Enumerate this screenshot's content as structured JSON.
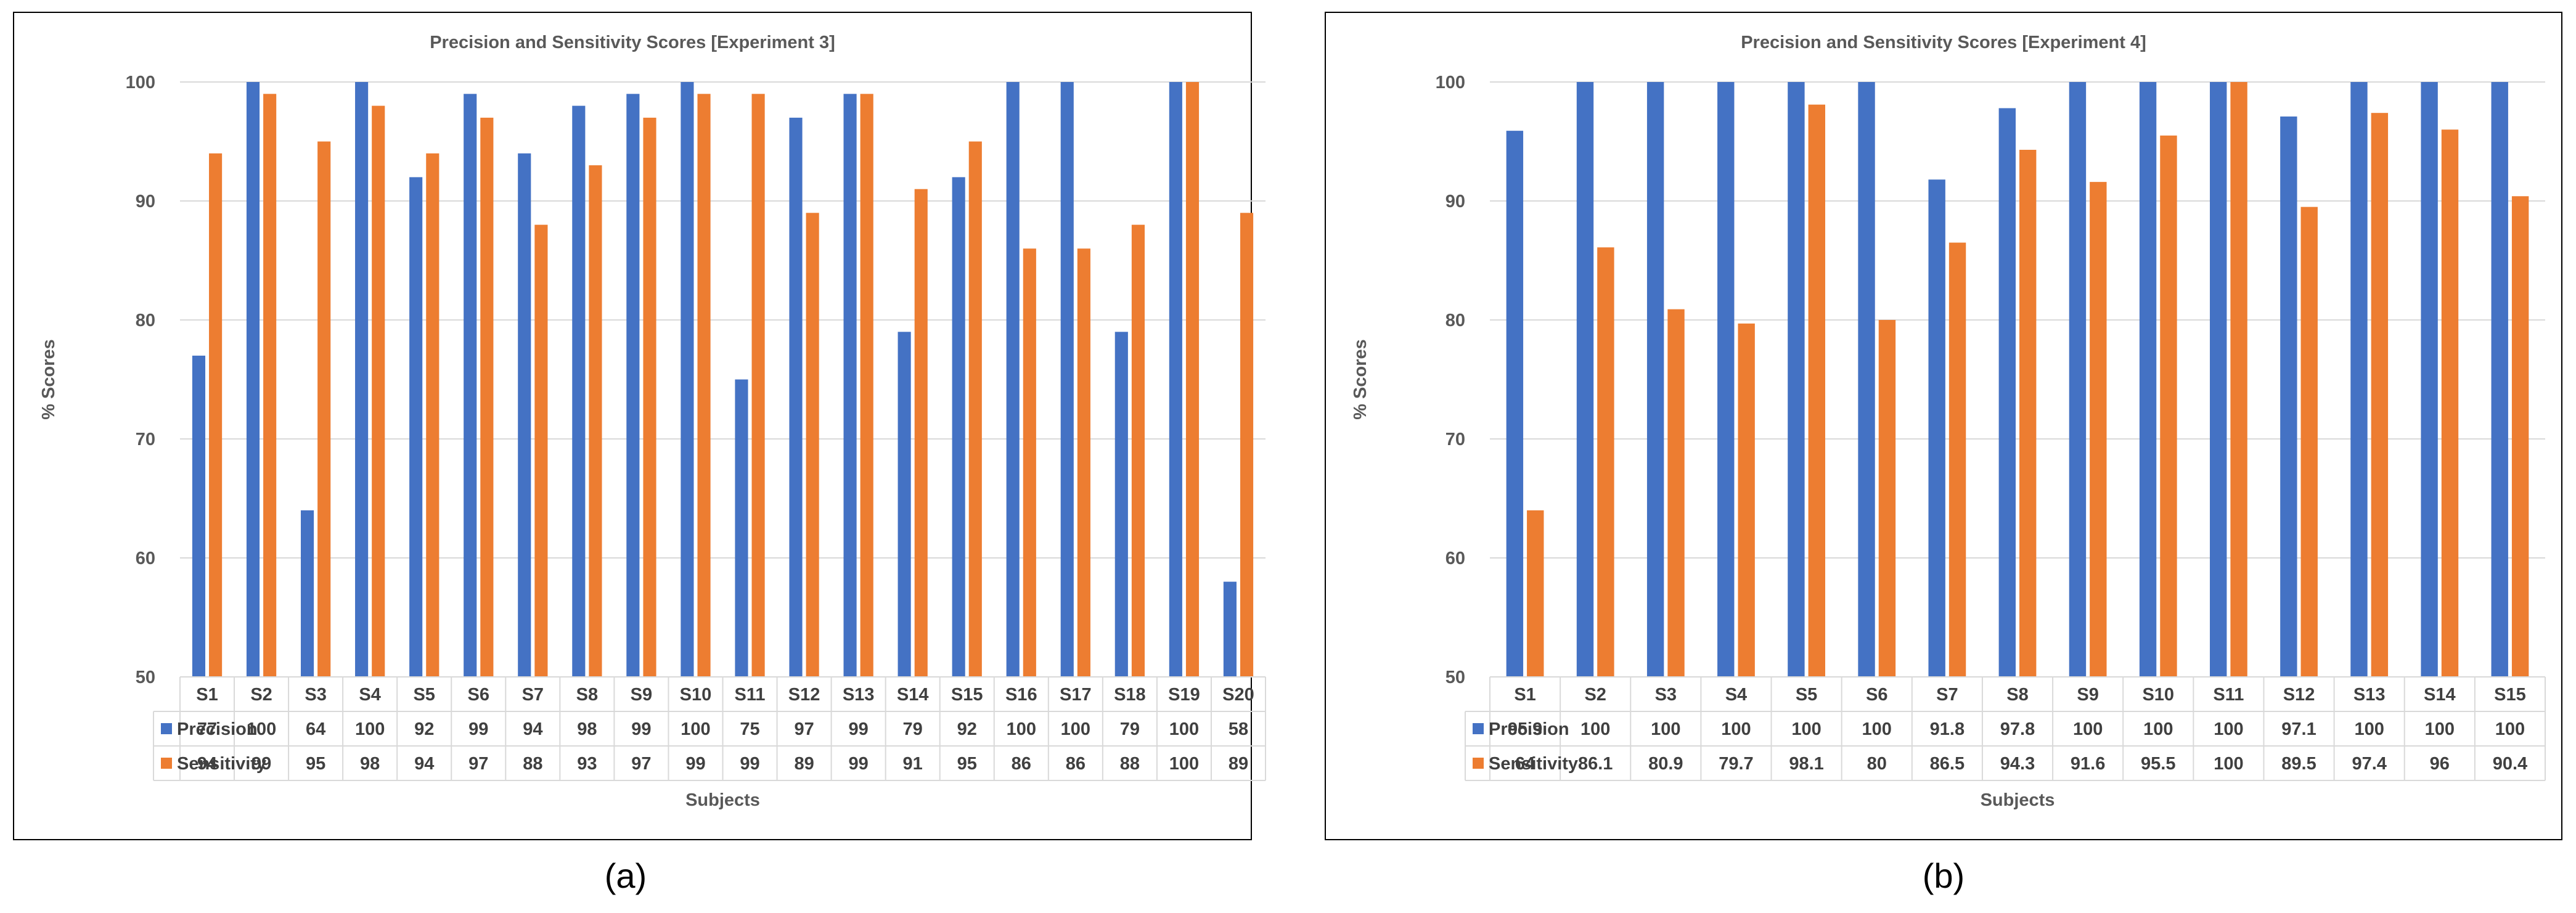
{
  "colors": {
    "precision": "#4472C4",
    "sensitivity": "#ED7D31",
    "grid": "#D9D9D9",
    "text": "#595959",
    "border": "#000000"
  },
  "chart_data": [
    {
      "type": "bar",
      "title": "Precision and Sensitivity Scores [Experiment 3]",
      "xlabel": "Subjects",
      "ylabel": "% Scores",
      "ylim": [
        50,
        100
      ],
      "yticks": [
        50,
        60,
        70,
        80,
        90,
        100
      ],
      "grid": true,
      "legend": "data-table",
      "caption": "(a)",
      "categories": [
        "S1",
        "S2",
        "S3",
        "S4",
        "S5",
        "S6",
        "S7",
        "S8",
        "S9",
        "S10",
        "S11",
        "S12",
        "S13",
        "S14",
        "S15",
        "S16",
        "S17",
        "S18",
        "S19",
        "S20"
      ],
      "series": [
        {
          "name": "Precision",
          "color": "#4472C4",
          "values": [
            77,
            100,
            64,
            100,
            92,
            99,
            94,
            98,
            99,
            100,
            75,
            97,
            99,
            79,
            92,
            100,
            100,
            79,
            100,
            58
          ]
        },
        {
          "name": "Sensitivity",
          "color": "#ED7D31",
          "values": [
            94,
            99,
            95,
            98,
            94,
            97,
            88,
            93,
            97,
            99,
            99,
            89,
            99,
            91,
            95,
            86,
            86,
            88,
            100,
            89
          ]
        }
      ]
    },
    {
      "type": "bar",
      "title": "Precision and Sensitivity Scores [Experiment 4]",
      "xlabel": "Subjects",
      "ylabel": "% Scores",
      "ylim": [
        50,
        100
      ],
      "yticks": [
        50,
        60,
        70,
        80,
        90,
        100
      ],
      "grid": true,
      "legend": "data-table",
      "caption": "(b)",
      "categories": [
        "S1",
        "S2",
        "S3",
        "S4",
        "S5",
        "S6",
        "S7",
        "S8",
        "S9",
        "S10",
        "S11",
        "S12",
        "S13",
        "S14",
        "S15"
      ],
      "series": [
        {
          "name": "Precision",
          "color": "#4472C4",
          "values": [
            95.9,
            100,
            100,
            100,
            100,
            100,
            91.8,
            97.8,
            100,
            100,
            100,
            97.1,
            100,
            100,
            100
          ]
        },
        {
          "name": "Sensitivity",
          "color": "#ED7D31",
          "values": [
            64,
            86.1,
            80.9,
            79.7,
            98.1,
            80,
            86.5,
            94.3,
            91.6,
            95.5,
            100,
            89.5,
            97.4,
            96,
            90.4
          ]
        }
      ]
    }
  ]
}
